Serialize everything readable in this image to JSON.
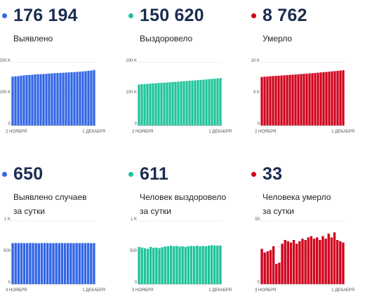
{
  "colors": {
    "blue": "#3366e6",
    "green": "#1fc49b",
    "red": "#d0021b"
  },
  "panels": [
    {
      "id": "detected",
      "value": "176 194",
      "label": [
        "Выявлено"
      ],
      "color": "blue"
    },
    {
      "id": "recovered",
      "value": "150 620",
      "label": [
        "Выздоровело"
      ],
      "color": "green"
    },
    {
      "id": "died",
      "value": "8 762",
      "label": [
        "Умерло"
      ],
      "color": "red"
    },
    {
      "id": "daily-detected",
      "value": "650",
      "label": [
        "Выявлено случаев",
        "за сутки"
      ],
      "color": "blue"
    },
    {
      "id": "daily-recovered",
      "value": "611",
      "label": [
        "Человек выздоровело",
        "за сутки"
      ],
      "color": "green"
    },
    {
      "id": "daily-died",
      "value": "33",
      "label": [
        "Человека умерло",
        "за сутки"
      ],
      "color": "red"
    }
  ],
  "chart_data": [
    {
      "type": "bar",
      "title": "",
      "color": "blue",
      "grid": true,
      "ylim": [
        0,
        200000
      ],
      "yticks": [
        "0",
        "100 K",
        "200 K"
      ],
      "x_start_label": "2 НОЯБРЯ",
      "x_end_label": "1 ДЕКАБРЯ",
      "values": [
        155000,
        156000,
        157000,
        158000,
        159000,
        160000,
        160500,
        161000,
        162000,
        162500,
        163000,
        163500,
        164000,
        165000,
        165500,
        166000,
        166500,
        167000,
        167500,
        168000,
        168500,
        169000,
        169500,
        170000,
        171000,
        171500,
        172500,
        173500,
        174500,
        176194
      ]
    },
    {
      "type": "bar",
      "title": "",
      "color": "green",
      "grid": true,
      "ylim": [
        0,
        200000
      ],
      "yticks": [
        "0",
        "100 K",
        "200 K"
      ],
      "x_start_label": "2 НОЯБРЯ",
      "x_end_label": "1 ДЕКАБРЯ",
      "values": [
        130000,
        131000,
        131500,
        132000,
        133000,
        133500,
        134000,
        135000,
        135500,
        136000,
        136500,
        137000,
        138000,
        138500,
        139000,
        140000,
        140500,
        141000,
        142000,
        142500,
        143500,
        144000,
        144500,
        145500,
        146000,
        147000,
        148000,
        148500,
        149500,
        150620
      ]
    },
    {
      "type": "bar",
      "title": "",
      "color": "red",
      "grid": true,
      "ylim": [
        0,
        10000
      ],
      "yticks": [
        "0",
        "5 K",
        "10 K"
      ],
      "x_start_label": "2 НОЯБРЯ",
      "x_end_label": "1 ДЕКАБРЯ",
      "values": [
        7700,
        7740,
        7780,
        7810,
        7840,
        7870,
        7900,
        7930,
        7960,
        8000,
        8030,
        8060,
        8090,
        8130,
        8160,
        8200,
        8230,
        8270,
        8300,
        8340,
        8380,
        8420,
        8460,
        8500,
        8540,
        8580,
        8620,
        8670,
        8720,
        8762
      ]
    },
    {
      "type": "bar",
      "title": "",
      "color": "blue",
      "grid": true,
      "ylim": [
        0,
        1000
      ],
      "yticks": [
        "0",
        "500",
        "1 K"
      ],
      "x_start_label": "3 НОЯБРЯ",
      "x_end_label": "1 ДЕКАБРЯ",
      "values": [
        650,
        652,
        650,
        651,
        649,
        650,
        652,
        651,
        650,
        648,
        650,
        652,
        651,
        650,
        649,
        651,
        650,
        652,
        650,
        651,
        650,
        649,
        652,
        650,
        651,
        650,
        652,
        649,
        650
      ]
    },
    {
      "type": "bar",
      "title": "",
      "color": "green",
      "grid": true,
      "ylim": [
        0,
        1000
      ],
      "yticks": [
        "0",
        "500",
        "1 K"
      ],
      "x_start_label": "3 НОЯБРЯ",
      "x_end_label": "1 ДЕКАБРЯ",
      "values": [
        590,
        580,
        570,
        560,
        590,
        575,
        580,
        570,
        585,
        595,
        600,
        610,
        600,
        605,
        595,
        600,
        590,
        600,
        605,
        600,
        610,
        600,
        605,
        600,
        610,
        615,
        612,
        610,
        611
      ]
    },
    {
      "type": "bar",
      "title": "",
      "color": "red",
      "grid": true,
      "ylim": [
        0,
        50
      ],
      "yticks": [
        "0",
        "",
        "50"
      ],
      "x_start_label": "3 НОЯБРЯ",
      "x_end_label": "1 ДЕКАБРЯ",
      "values": [
        28,
        25,
        26,
        27,
        30,
        16,
        17,
        32,
        35,
        34,
        33,
        35,
        32,
        34,
        36,
        35,
        37,
        38,
        36,
        37,
        35,
        38,
        36,
        40,
        37,
        41,
        35,
        34,
        33
      ]
    }
  ]
}
